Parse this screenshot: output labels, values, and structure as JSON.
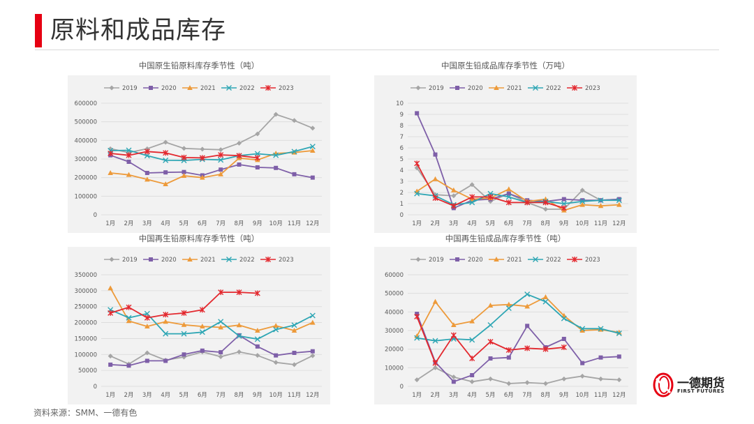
{
  "page": {
    "title": "原料和成品库存",
    "source": "资料来源：SMM、一德有色",
    "logo_cn": "一德期货",
    "logo_en": "FIRST FUTURES"
  },
  "colors": {
    "accent": "#e60012",
    "s2019": "#a5a5a5",
    "s2020": "#7e5fa8",
    "s2021": "#ed9a3a",
    "s2022": "#2ea6b4",
    "s2023": "#e3282e",
    "panel": "#f2f2f2",
    "grid": "#d9d9d9"
  },
  "chart_data": [
    {
      "type": "line",
      "title": "中国原生铅原料库存季节性（吨）",
      "categories": [
        "1月",
        "2月",
        "3月",
        "4月",
        "5月",
        "6月",
        "7月",
        "8月",
        "9月",
        "10月",
        "11月",
        "12月"
      ],
      "ylim": [
        0,
        600000
      ],
      "yticks": [
        0,
        100000,
        200000,
        300000,
        400000,
        500000,
        600000
      ],
      "series": [
        {
          "name": "2019",
          "values": [
            355000,
            335000,
            355000,
            390000,
            357000,
            353000,
            350000,
            385000,
            435000,
            540000,
            507000,
            466000
          ]
        },
        {
          "name": "2020",
          "values": [
            320000,
            285000,
            225000,
            228000,
            230000,
            212000,
            243000,
            270000,
            255000,
            252000,
            218000,
            200000
          ]
        },
        {
          "name": "2021",
          "values": [
            225000,
            215000,
            190000,
            165000,
            210000,
            200000,
            218000,
            305000,
            295000,
            330000,
            335000,
            345000
          ]
        },
        {
          "name": "2022",
          "values": [
            345000,
            347000,
            318000,
            293000,
            292000,
            298000,
            295000,
            318000,
            328000,
            320000,
            340000,
            367000
          ]
        },
        {
          "name": "2023",
          "values": [
            330000,
            320000,
            340000,
            333000,
            308000,
            306000,
            322000,
            318000,
            306000,
            null,
            null,
            null
          ]
        }
      ]
    },
    {
      "type": "line",
      "title": "中国原生铅成品库存季节性（万吨）",
      "categories": [
        "1月",
        "2月",
        "3月",
        "4月",
        "5月",
        "6月",
        "7月",
        "8月",
        "9月",
        "10月",
        "11月",
        "12月"
      ],
      "ylim": [
        0,
        10
      ],
      "yticks": [
        0,
        1,
        2,
        3,
        4,
        5,
        6,
        7,
        8,
        9,
        10
      ],
      "series": [
        {
          "name": "2019",
          "values": [
            4.2,
            1.8,
            1.7,
            2.7,
            1.2,
            1.9,
            1.1,
            0.5,
            0.5,
            2.2,
            1.3,
            1.4
          ]
        },
        {
          "name": "2020",
          "values": [
            9.1,
            5.4,
            0.6,
            1.3,
            1.4,
            1.9,
            1.3,
            1.2,
            1.4,
            1.3,
            1.3,
            1.4
          ]
        },
        {
          "name": "2021",
          "values": [
            2.1,
            3.2,
            2.2,
            1.4,
            1.5,
            2.3,
            1.2,
            1.4,
            0.4,
            0.9,
            0.8,
            0.9
          ]
        },
        {
          "name": "2022",
          "values": [
            1.9,
            1.7,
            0.9,
            1.1,
            1.9,
            1.6,
            1.1,
            1.2,
            1.0,
            1.2,
            1.3,
            1.3
          ]
        },
        {
          "name": "2023",
          "values": [
            4.6,
            1.5,
            0.8,
            1.6,
            1.6,
            1.1,
            1.1,
            1.1,
            0.6,
            null,
            null,
            null
          ]
        }
      ]
    },
    {
      "type": "line",
      "title": "中国再生铅原料库存季节性（吨）",
      "categories": [
        "1月",
        "2月",
        "3月",
        "4月",
        "5月",
        "6月",
        "7月",
        "8月",
        "9月",
        "10月",
        "11月",
        "12月"
      ],
      "ylim": [
        0,
        350000
      ],
      "yticks": [
        0,
        50000,
        100000,
        150000,
        200000,
        250000,
        300000,
        350000
      ],
      "series": [
        {
          "name": "2019",
          "values": [
            95000,
            70000,
            105000,
            82000,
            92000,
            108000,
            93000,
            108000,
            97000,
            75000,
            68000,
            96000
          ]
        },
        {
          "name": "2020",
          "values": [
            68000,
            65000,
            80000,
            80000,
            100000,
            112000,
            107000,
            160000,
            125000,
            97000,
            105000,
            110000
          ]
        },
        {
          "name": "2021",
          "values": [
            308000,
            205000,
            188000,
            203000,
            193000,
            188000,
            185000,
            192000,
            175000,
            190000,
            175000,
            200000
          ]
        },
        {
          "name": "2022",
          "values": [
            240000,
            215000,
            228000,
            165000,
            165000,
            170000,
            203000,
            158000,
            148000,
            178000,
            192000,
            222000
          ]
        },
        {
          "name": "2023",
          "values": [
            230000,
            248000,
            215000,
            225000,
            230000,
            240000,
            295000,
            295000,
            292000,
            null,
            null,
            null
          ]
        }
      ]
    },
    {
      "type": "line",
      "title": "中国再生铅成品库存季节性（吨）",
      "categories": [
        "1月",
        "2月",
        "3月",
        "4月",
        "5月",
        "6月",
        "7月",
        "8月",
        "9月",
        "10月",
        "11月",
        "12月"
      ],
      "ylim": [
        0,
        60000
      ],
      "yticks": [
        0,
        10000,
        20000,
        30000,
        40000,
        50000,
        60000
      ],
      "series": [
        {
          "name": "2019",
          "values": [
            3500,
            10000,
            5000,
            2500,
            4000,
            1500,
            2000,
            1500,
            4000,
            5500,
            4000,
            3500
          ]
        },
        {
          "name": "2020",
          "values": [
            39000,
            13000,
            2500,
            6000,
            15000,
            15500,
            32500,
            21000,
            25500,
            12500,
            15500,
            16000
          ]
        },
        {
          "name": "2021",
          "values": [
            27000,
            45500,
            33000,
            35000,
            43500,
            44000,
            43000,
            48000,
            38000,
            30000,
            30500,
            29000
          ]
        },
        {
          "name": "2022",
          "values": [
            26000,
            24500,
            25500,
            25000,
            33000,
            42000,
            49500,
            45500,
            36500,
            31000,
            31000,
            28500
          ]
        },
        {
          "name": "2023",
          "values": [
            37500,
            12500,
            27500,
            15000,
            24000,
            19500,
            20500,
            20000,
            21000,
            null,
            null,
            null
          ]
        }
      ]
    }
  ]
}
